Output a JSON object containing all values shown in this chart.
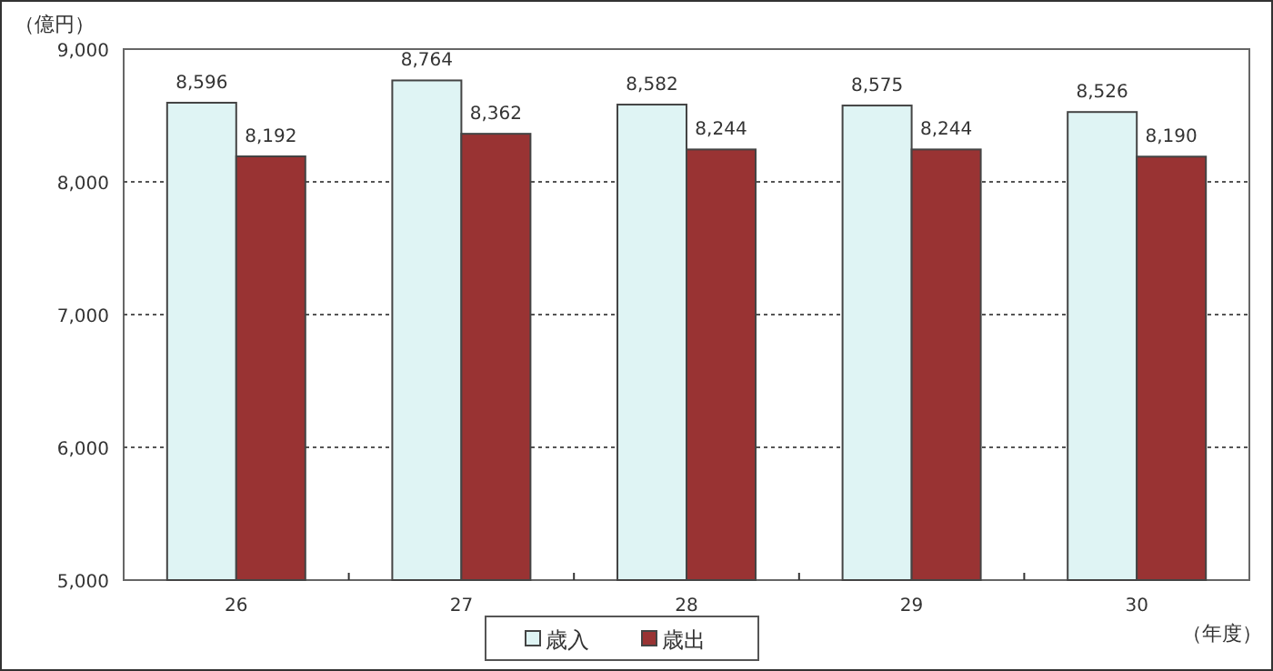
{
  "chart_data": {
    "type": "bar",
    "ylabel": "（億円）",
    "xlabel": "（年度）",
    "categories": [
      "26",
      "27",
      "28",
      "29",
      "30"
    ],
    "series": [
      {
        "name": "歳入",
        "color": "#dff4f4",
        "values": [
          8596,
          8764,
          8582,
          8575,
          8526
        ],
        "value_labels": [
          "8,596",
          "8,764",
          "8,582",
          "8,575",
          "8,526"
        ]
      },
      {
        "name": "歳出",
        "color": "#993333",
        "values": [
          8192,
          8362,
          8244,
          8244,
          8190
        ],
        "value_labels": [
          "8,192",
          "8,362",
          "8,244",
          "8,244",
          "8,190"
        ]
      }
    ],
    "ylim": [
      5000,
      9000
    ],
    "yticks": [
      {
        "value": 5000,
        "label": "5,000"
      },
      {
        "value": 6000,
        "label": "6,000"
      },
      {
        "value": 7000,
        "label": "7,000"
      },
      {
        "value": 8000,
        "label": "8,000"
      },
      {
        "value": 9000,
        "label": "9,000"
      }
    ],
    "grid": "y",
    "legend": "bottom"
  }
}
